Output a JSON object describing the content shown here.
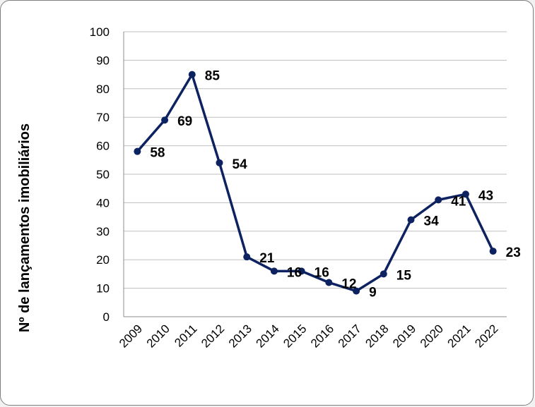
{
  "chart_data": {
    "type": "line",
    "title": "",
    "xlabel": "",
    "ylabel": "Nº de lançamentos imobiliários",
    "ylim": [
      0,
      100
    ],
    "y_ticks": [
      0,
      10,
      20,
      30,
      40,
      50,
      60,
      70,
      80,
      90,
      100
    ],
    "grid": true,
    "legend": "none",
    "categories": [
      "2009",
      "2010",
      "2011",
      "2012",
      "2013",
      "2014",
      "2015",
      "2016",
      "2017",
      "2018",
      "2019",
      "2020",
      "2021",
      "2022"
    ],
    "series": [
      {
        "values": [
          58,
          69,
          85,
          54,
          21,
          16,
          16,
          12,
          9,
          15,
          34,
          41,
          43,
          23
        ],
        "color": "#0d2260"
      }
    ],
    "data_labels": [
      "58",
      "69",
      "85",
      "54",
      "21",
      "16",
      "16",
      "12",
      "9",
      "15",
      "34",
      "41",
      "43",
      "23"
    ]
  }
}
